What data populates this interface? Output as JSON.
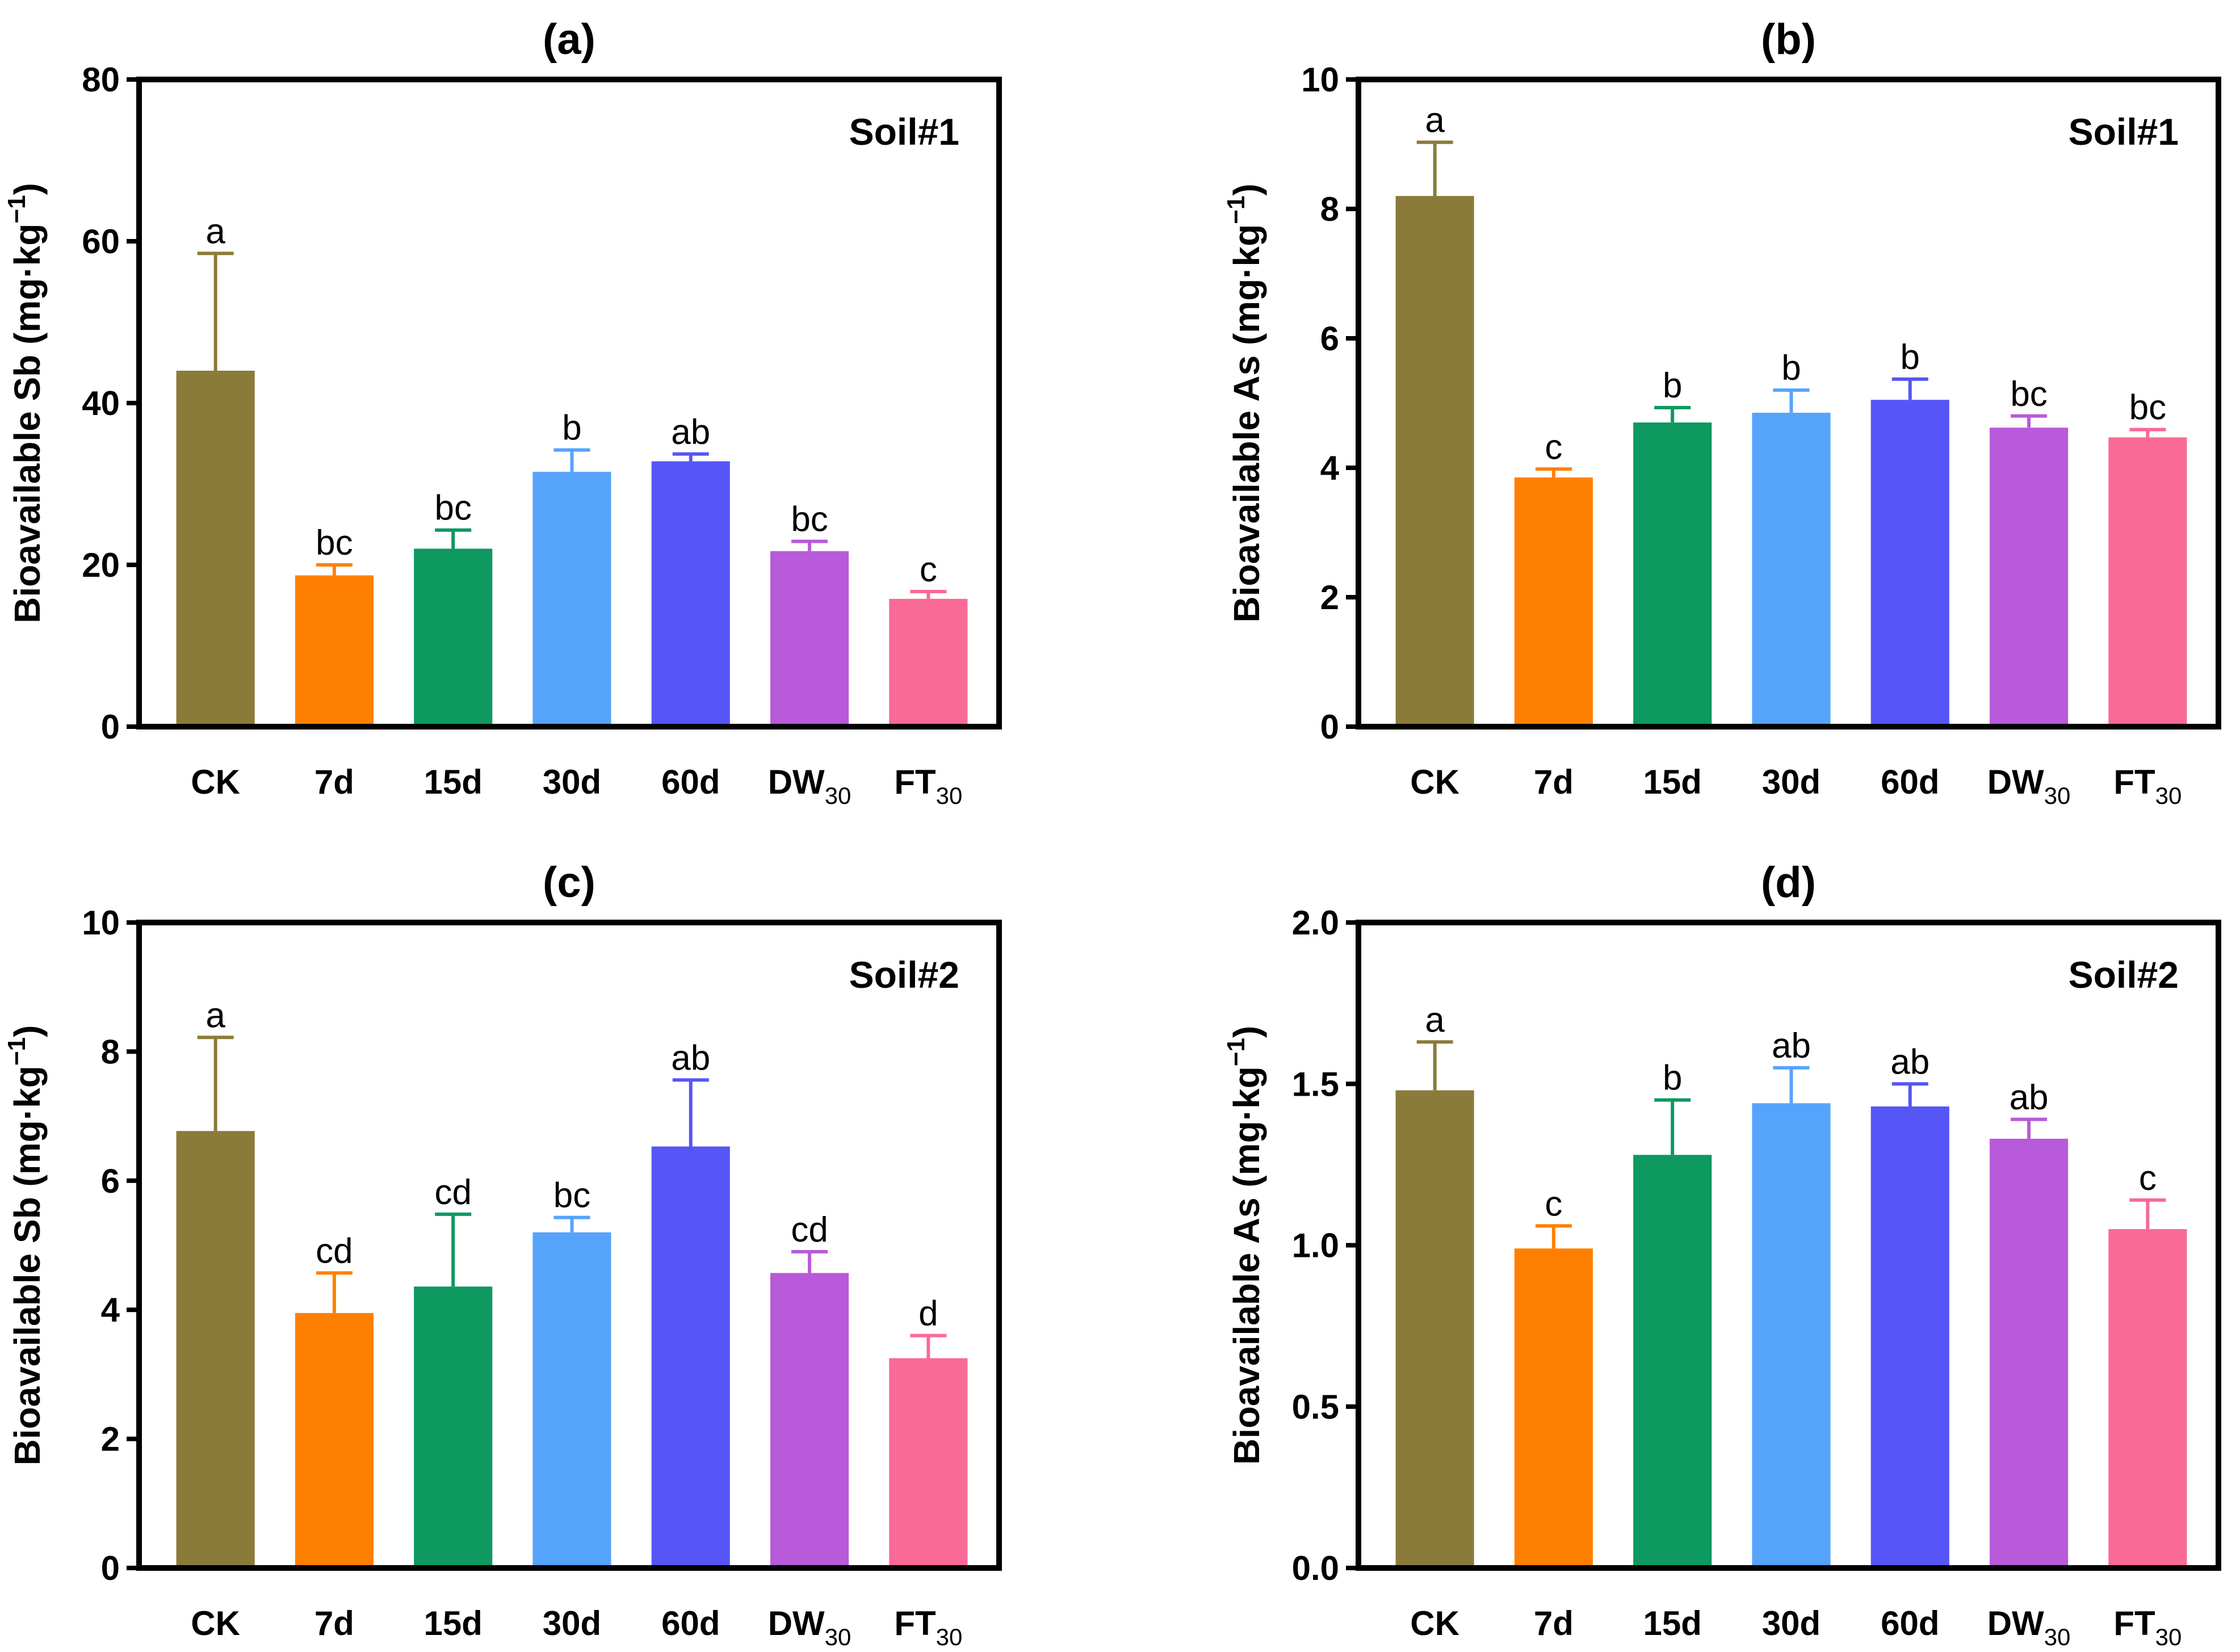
{
  "chart_data": [
    {
      "type": "bar",
      "panel_label": "(a)",
      "soil_label": "Soil#1",
      "ylabel_main": "Bioavailable Sb (mg·kg",
      "ylabel_sup": "−1",
      "ylabel_close": ")",
      "ylim": [
        0,
        80
      ],
      "yticks": [
        "0",
        "20",
        "40",
        "60",
        "80"
      ],
      "categories": [
        "CK",
        "7d",
        "15d",
        "30d",
        "60d",
        "DW",
        "FT"
      ],
      "category_subscripts": [
        "",
        "",
        "",
        "",
        "",
        "30",
        "30"
      ],
      "values": [
        44,
        18.7,
        22,
        31.5,
        32.8,
        21.7,
        15.8
      ],
      "errors": [
        14.5,
        1.3,
        2.3,
        2.7,
        0.9,
        1.2,
        0.9
      ],
      "significance": [
        "a",
        "bc",
        "bc",
        "b",
        "ab",
        "bc",
        "c"
      ],
      "colors": [
        "#8b7b3a",
        "#ff8000",
        "#0d9960",
        "#56a3fc",
        "#5656f7",
        "#b85ad9",
        "#f96a96"
      ]
    },
    {
      "type": "bar",
      "panel_label": "(b)",
      "soil_label": "Soil#1",
      "ylabel_main": "Bioavailable As (mg·kg",
      "ylabel_sup": "−1",
      "ylabel_close": ")",
      "ylim": [
        0,
        10
      ],
      "yticks": [
        "0",
        "2",
        "4",
        "6",
        "8",
        "10"
      ],
      "categories": [
        "CK",
        "7d",
        "15d",
        "30d",
        "60d",
        "DW",
        "FT"
      ],
      "category_subscripts": [
        "",
        "",
        "",
        "",
        "",
        "30",
        "30"
      ],
      "values": [
        8.2,
        3.85,
        4.7,
        4.85,
        5.05,
        4.62,
        4.47
      ],
      "errors": [
        0.83,
        0.13,
        0.23,
        0.35,
        0.32,
        0.18,
        0.12
      ],
      "significance": [
        "a",
        "c",
        "b",
        "b",
        "b",
        "bc",
        "bc"
      ],
      "colors": [
        "#8b7b3a",
        "#ff8000",
        "#0d9960",
        "#56a3fc",
        "#5656f7",
        "#b85ad9",
        "#f96a96"
      ]
    },
    {
      "type": "bar",
      "panel_label": "(c)",
      "soil_label": "Soil#2",
      "ylabel_main": "Bioavailable Sb (mg·kg",
      "ylabel_sup": "−1",
      "ylabel_close": ")",
      "ylim": [
        0,
        10
      ],
      "yticks": [
        "0",
        "2",
        "4",
        "6",
        "8",
        "10"
      ],
      "categories": [
        "CK",
        "7d",
        "15d",
        "30d",
        "60d",
        "DW",
        "FT"
      ],
      "category_subscripts": [
        "",
        "",
        "",
        "",
        "",
        "30",
        "30"
      ],
      "values": [
        6.77,
        3.95,
        4.36,
        5.2,
        6.53,
        4.57,
        3.25
      ],
      "errors": [
        1.45,
        0.62,
        1.12,
        0.23,
        1.03,
        0.33,
        0.35
      ],
      "significance": [
        "a",
        "cd",
        "cd",
        "bc",
        "ab",
        "cd",
        "d"
      ],
      "colors": [
        "#8b7b3a",
        "#ff8000",
        "#0d9960",
        "#56a3fc",
        "#5656f7",
        "#b85ad9",
        "#f96a96"
      ]
    },
    {
      "type": "bar",
      "panel_label": "(d)",
      "soil_label": "Soil#2",
      "ylabel_main": "Bioavailable As (mg·kg",
      "ylabel_sup": "−1",
      "ylabel_close": ")",
      "ylim": [
        0,
        2.0
      ],
      "yticks": [
        "0.0",
        "0.5",
        "1.0",
        "1.5",
        "2.0"
      ],
      "categories": [
        "CK",
        "7d",
        "15d",
        "30d",
        "60d",
        "DW",
        "FT"
      ],
      "category_subscripts": [
        "",
        "",
        "",
        "",
        "",
        "30",
        "30"
      ],
      "values": [
        1.48,
        0.99,
        1.28,
        1.44,
        1.43,
        1.33,
        1.05
      ],
      "errors": [
        0.15,
        0.07,
        0.17,
        0.11,
        0.07,
        0.06,
        0.09
      ],
      "significance": [
        "a",
        "c",
        "b",
        "ab",
        "ab",
        "ab",
        "c"
      ],
      "colors": [
        "#8b7b3a",
        "#ff8000",
        "#0d9960",
        "#56a3fc",
        "#5656f7",
        "#b85ad9",
        "#f96a96"
      ]
    }
  ]
}
